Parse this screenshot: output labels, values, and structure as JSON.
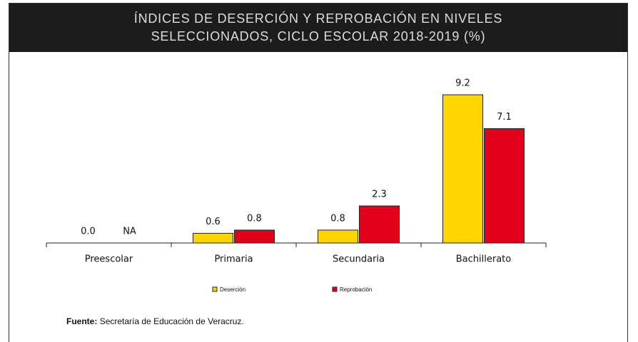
{
  "chart_data": {
    "type": "bar",
    "title": "ÍNDICES DE DESERCIÓN Y REPROBACIÓN EN NIVELES SELECCIONADOS, CICLO ESCOLAR 2018-2019 (%)",
    "categories": [
      "Preescolar",
      "Primaria",
      "Secundaria",
      "Bachillerato"
    ],
    "series": [
      {
        "name": "Deserción",
        "color": "#ffd400",
        "values": [
          0,
          0.6,
          0.8,
          9.2
        ],
        "value_labels": [
          "0.0",
          "0.6",
          "0.8",
          "9.2"
        ]
      },
      {
        "name": "Reprobación",
        "color": "#e3001b",
        "values": [
          null,
          0.8,
          2.3,
          7.1
        ],
        "value_labels": [
          "NA",
          "0.8",
          "2.3",
          "7.1"
        ]
      }
    ],
    "legend": "bottom",
    "source": {
      "label": "Fuente:",
      "text": "Secretaría de Educación de Veracruz."
    }
  }
}
